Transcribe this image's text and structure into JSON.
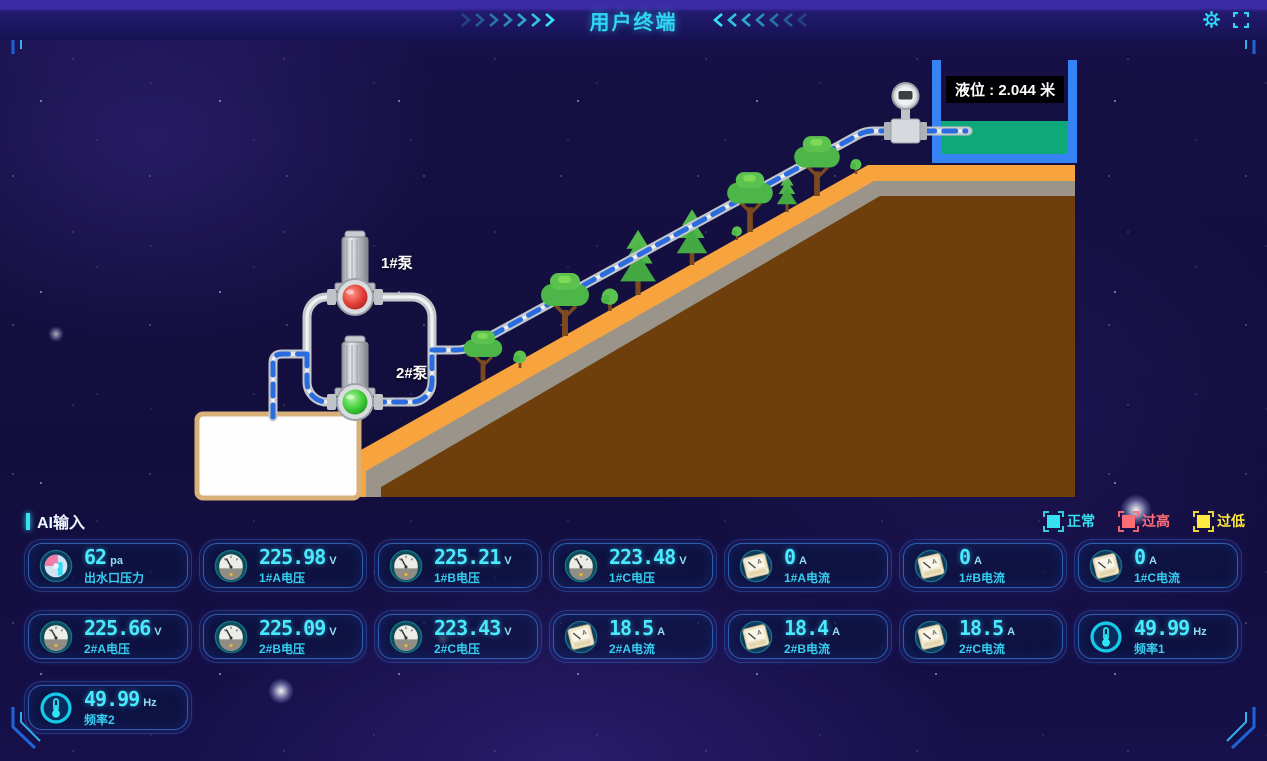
{
  "header": {
    "title": "用户终端",
    "icons": [
      "chevrons-right-icon",
      "chevrons-left-icon",
      "gear-icon",
      "fullscreen-icon"
    ]
  },
  "scene": {
    "tank_level_label": "液位 :",
    "tank_level_value": "2.044",
    "tank_level_unit": "米",
    "pump1_label": "1#泵",
    "pump2_label": "2#泵",
    "pump1_status_color": "#e23b3b",
    "pump2_status_color": "#35d23a",
    "colors": {
      "accent_cyan": "#35e1f2",
      "pipe_flow_blue": "#2a6be0",
      "terrain_surface": "#f7a43f",
      "terrain_subsoil": "#9a948a",
      "terrain_ground": "#6f3e0d",
      "tank_wall": "#3583f4",
      "tank_water": "#0fa879"
    }
  },
  "ai_section": {
    "title": "AI输入",
    "legend": [
      {
        "label": "正常",
        "color": "#35e1f2"
      },
      {
        "label": "过高",
        "color": "#ff6e76"
      },
      {
        "label": "过低",
        "color": "#ffe93f"
      }
    ],
    "cards": [
      {
        "value": "62",
        "unit": "pa",
        "label": "出水口压力",
        "icon": "pressure-gauge-icon"
      },
      {
        "value": "225.98",
        "unit": "V",
        "label": "1#A电压",
        "icon": "voltmeter-icon"
      },
      {
        "value": "225.21",
        "unit": "V",
        "label": "1#B电压",
        "icon": "voltmeter-icon"
      },
      {
        "value": "223.48",
        "unit": "V",
        "label": "1#C电压",
        "icon": "voltmeter-icon"
      },
      {
        "value": "0",
        "unit": "A",
        "label": "1#A电流",
        "icon": "ammeter-icon"
      },
      {
        "value": "0",
        "unit": "A",
        "label": "1#B电流",
        "icon": "ammeter-icon"
      },
      {
        "value": "0",
        "unit": "A",
        "label": "1#C电流",
        "icon": "ammeter-icon"
      },
      {
        "value": "225.66",
        "unit": "V",
        "label": "2#A电压",
        "icon": "voltmeter-icon"
      },
      {
        "value": "225.09",
        "unit": "V",
        "label": "2#B电压",
        "icon": "voltmeter-icon"
      },
      {
        "value": "223.43",
        "unit": "V",
        "label": "2#C电压",
        "icon": "voltmeter-icon"
      },
      {
        "value": "18.5",
        "unit": "A",
        "label": "2#A电流",
        "icon": "ammeter-icon"
      },
      {
        "value": "18.4",
        "unit": "A",
        "label": "2#B电流",
        "icon": "ammeter-icon"
      },
      {
        "value": "18.5",
        "unit": "A",
        "label": "2#C电流",
        "icon": "ammeter-icon"
      },
      {
        "value": "49.99",
        "unit": "Hz",
        "label": "频率1",
        "icon": "thermometer-icon"
      },
      {
        "value": "49.99",
        "unit": "Hz",
        "label": "频率2",
        "icon": "thermometer-icon"
      }
    ]
  }
}
